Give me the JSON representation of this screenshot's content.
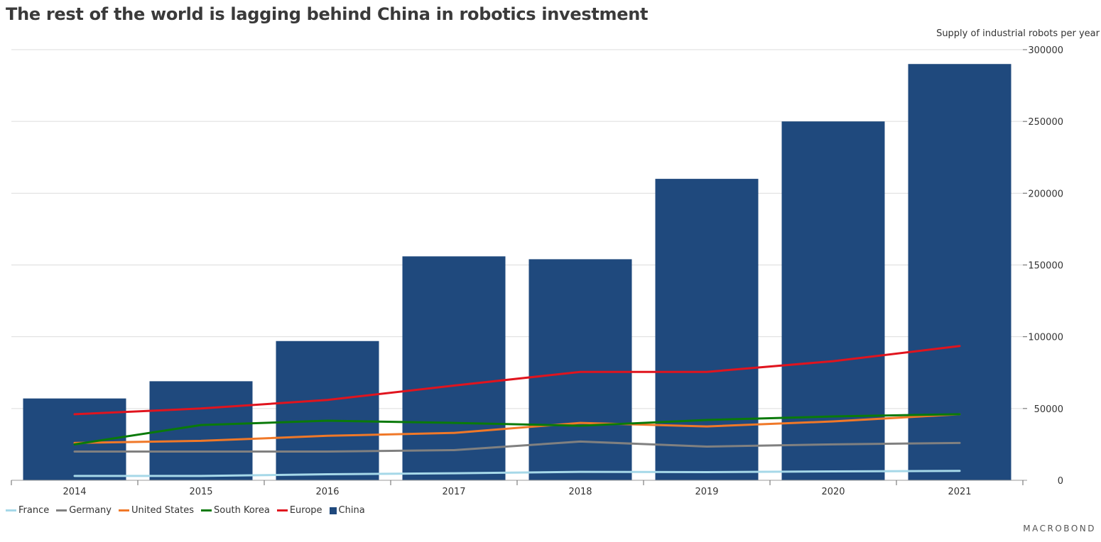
{
  "title": "The rest of the world is lagging behind China in robotics investment",
  "units_label": "Supply of industrial robots per year",
  "brand": "MACROBOND",
  "chart_data": {
    "type": "bar",
    "categories": [
      "2014",
      "2015",
      "2016",
      "2017",
      "2018",
      "2019",
      "2020",
      "2021"
    ],
    "ylim": [
      0,
      300000
    ],
    "yticks": [
      "0",
      "50000",
      "100000",
      "150000",
      "200000",
      "250000",
      "300000"
    ],
    "grid": true,
    "legend_position": "bottom-left",
    "bars": {
      "name": "China",
      "color": "#1f497d",
      "values": [
        57000,
        69000,
        97000,
        156000,
        154000,
        210000,
        250000,
        290000
      ]
    },
    "lines": [
      {
        "name": "France",
        "color": "#a6d8e8",
        "values": [
          3000,
          3000,
          4200,
          4900,
          5900,
          5700,
          6200,
          6500
        ]
      },
      {
        "name": "Germany",
        "color": "#808080",
        "values": [
          20000,
          20000,
          20000,
          21000,
          27000,
          23500,
          25000,
          26000
        ]
      },
      {
        "name": "United States",
        "color": "#f07828",
        "values": [
          26000,
          27500,
          31000,
          33000,
          40000,
          37500,
          41000,
          46000
        ]
      },
      {
        "name": "South Korea",
        "color": "#0a7a0a",
        "values": [
          25000,
          38500,
          41500,
          40000,
          38000,
          42000,
          44500,
          46000
        ]
      },
      {
        "name": "Europe",
        "color": "#e0141e",
        "values": [
          46000,
          50000,
          56000,
          66000,
          75500,
          75500,
          83000,
          93500
        ]
      }
    ]
  }
}
